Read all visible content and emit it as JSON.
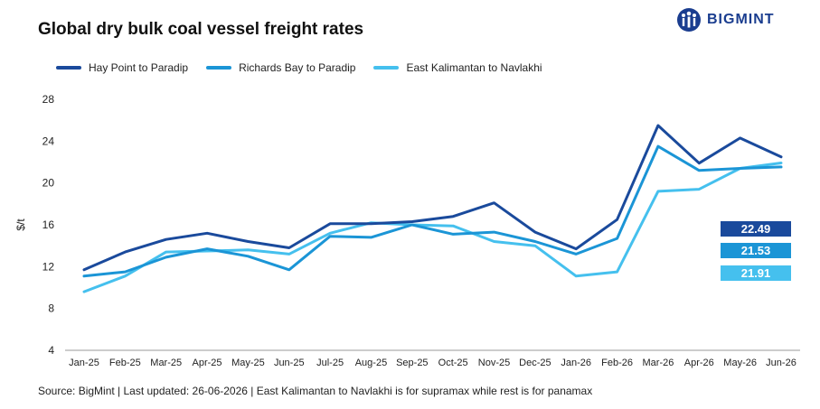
{
  "brand": {
    "name": "BIGMINT"
  },
  "header": {
    "title": "Global dry bulk coal vessel freight rates"
  },
  "footer": {
    "source": "Source: BigMint | Last updated: 26-06-2026 | East Kalimantan to Navlakhi is for supramax while rest is for panamax"
  },
  "chart_data": {
    "type": "line",
    "title": "Global dry bulk coal vessel freight rates",
    "xlabel": "",
    "ylabel": "$/t",
    "ylim": [
      4,
      28
    ],
    "yticks": [
      4,
      8,
      12,
      16,
      20,
      24,
      28
    ],
    "grid": false,
    "legend_position": "top-left",
    "categories": [
      "Jan-25",
      "Feb-25",
      "Mar-25",
      "Apr-25",
      "May-25",
      "Jun-25",
      "Jul-25",
      "Aug-25",
      "Sep-25",
      "Oct-25",
      "Nov-25",
      "Dec-25",
      "Jan-26",
      "Feb-26",
      "Mar-26",
      "Apr-26",
      "May-26",
      "Jun-26"
    ],
    "series": [
      {
        "name": "Hay Point to Paradip",
        "color": "#1a4a9c",
        "values": [
          11.7,
          13.4,
          14.6,
          15.2,
          14.4,
          13.8,
          16.1,
          16.1,
          16.3,
          16.8,
          18.1,
          15.3,
          13.7,
          16.5,
          25.5,
          21.9,
          24.3,
          22.49
        ],
        "end_label": "22.49"
      },
      {
        "name": "Richards Bay to Paradip",
        "color": "#1b95d6",
        "values": [
          11.1,
          11.5,
          12.9,
          13.7,
          13.0,
          11.7,
          14.9,
          14.8,
          16.0,
          15.1,
          15.3,
          14.4,
          13.2,
          14.7,
          23.5,
          21.2,
          21.4,
          21.53
        ],
        "end_label": "21.53"
      },
      {
        "name": "East Kalimantan to Navlakhi",
        "color": "#45c0ee",
        "values": [
          9.6,
          11.1,
          13.4,
          13.5,
          13.6,
          13.2,
          15.2,
          16.2,
          16.0,
          15.9,
          14.4,
          14.0,
          11.1,
          11.5,
          19.2,
          19.4,
          21.4,
          21.91
        ],
        "end_label": "21.91"
      }
    ]
  }
}
